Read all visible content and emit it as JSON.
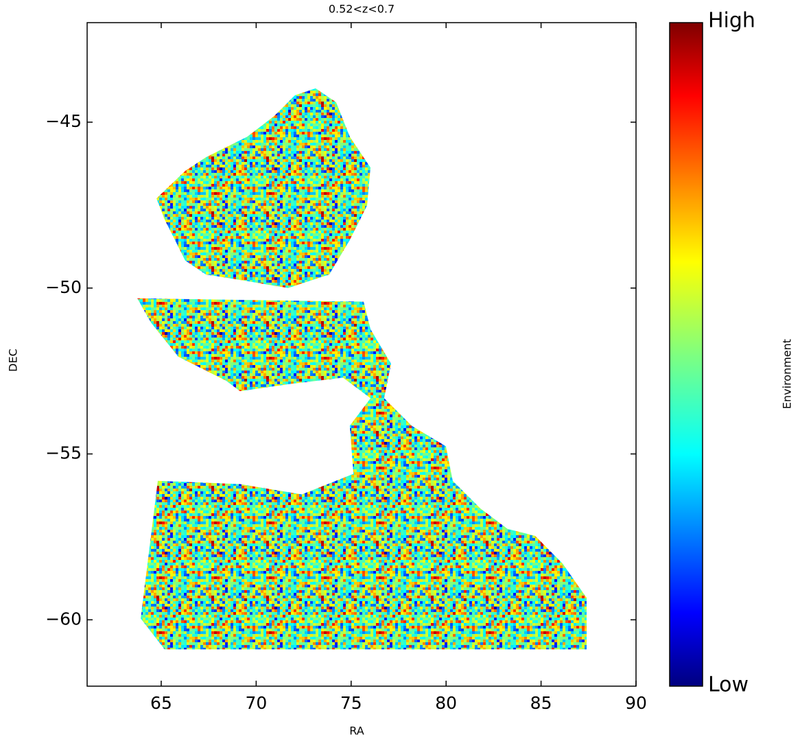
{
  "chart_data": {
    "type": "footprint",
    "title": "0.52<z<0.7",
    "xlabel": "RA",
    "ylabel": "DEC",
    "xlim": [
      61.1,
      90
    ],
    "ylim": [
      -62,
      -42
    ],
    "xticks": [
      65,
      70,
      75,
      80,
      85,
      90
    ],
    "yticks": [
      -45,
      -50,
      -55,
      -60
    ],
    "colorbar": {
      "label": "Environment",
      "high_label": "High",
      "low_label": "Low"
    },
    "regions": [
      {
        "x": [
          64.75,
          66.26,
          67.35,
          69.52,
          70.96,
          72.04,
          73.13,
          74.21,
          74.93,
          76.02,
          75.84,
          74.93,
          73.85,
          71.68,
          69.52,
          67.35,
          66.26,
          65.18
        ],
        "y": [
          -47.3,
          -46.47,
          -46.06,
          -45.44,
          -44.81,
          -44.19,
          -43.98,
          -44.4,
          -45.44,
          -46.37,
          -47.51,
          -48.55,
          -49.59,
          -50.0,
          -49.79,
          -49.59,
          -49.17,
          -47.93
        ]
      },
      {
        "x": [
          63.74,
          75.66,
          76.02,
          77.1,
          76.74,
          78.19,
          79.99,
          80.35,
          81.8,
          83.24,
          84.69,
          86.13,
          87.4,
          87.4,
          79.63,
          65.18,
          63.92,
          64.82,
          69.15,
          72.41,
          75.12,
          74.93,
          76.02,
          74.57,
          71.68,
          69.15,
          68.43,
          65.9,
          64.46
        ],
        "y": [
          -50.31,
          -50.41,
          -51.24,
          -52.28,
          -53.32,
          -54.15,
          -54.77,
          -55.81,
          -56.64,
          -57.26,
          -57.47,
          -58.3,
          -59.34,
          -60.89,
          -60.89,
          -60.89,
          -59.96,
          -55.81,
          -55.91,
          -56.22,
          -55.6,
          -54.15,
          -53.32,
          -52.7,
          -52.9,
          -53.11,
          -52.8,
          -52.07,
          -51.04
        ]
      }
    ]
  }
}
